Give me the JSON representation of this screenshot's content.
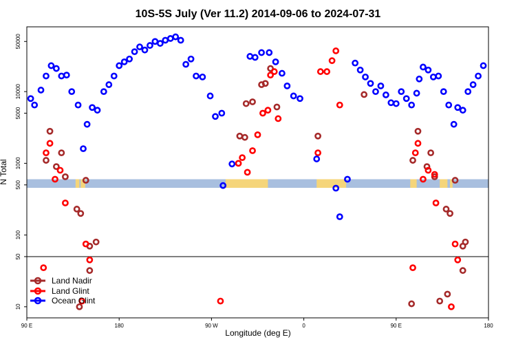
{
  "chart_data": {
    "type": "scatter",
    "title": "10S-5S July (Ver 11.2)   2014-09-06 to 2024-07-31",
    "xlabel": "Longitude (deg E)",
    "ylabel": "N Total",
    "y_scale": "log",
    "ylim": [
      7,
      80000
    ],
    "xlim": [
      0,
      360
    ],
    "x_ticks": [
      {
        "value": 0,
        "label": "90 E"
      },
      {
        "value": 72,
        "label": "180"
      },
      {
        "value": 144,
        "label": "90 W"
      },
      {
        "value": 216,
        "label": "0"
      },
      {
        "value": 288,
        "label": "90 E"
      },
      {
        "value": 360,
        "label": "180"
      }
    ],
    "y_ticks": [
      {
        "value": 10,
        "label": "10"
      },
      {
        "value": 50,
        "label": "50"
      },
      {
        "value": 100,
        "label": "100"
      },
      {
        "value": 500,
        "label": "500"
      },
      {
        "value": 1000,
        "label": "1000"
      },
      {
        "value": 5000,
        "label": "5000"
      },
      {
        "value": 10000,
        "label": "10000"
      },
      {
        "value": 50000,
        "label": "50000"
      }
    ],
    "reference_line": 50,
    "legend_position": "bottom-left",
    "colors": {
      "land_nadir": "#a52a2a",
      "land_glint": "#ff0000",
      "ocean_glint": "#0000ff",
      "map_ocean": "#a8bfdf",
      "map_land": "#f5d57a"
    },
    "map_band": {
      "y_low": 455,
      "y_high": 600,
      "land_segments": [
        [
          38,
          41
        ],
        [
          42,
          45.5
        ],
        [
          155,
          158
        ],
        [
          157,
          188
        ],
        [
          226,
          249
        ],
        [
          299,
          304
        ],
        [
          322,
          328
        ],
        [
          330,
          332
        ]
      ]
    },
    "series": [
      {
        "key": "land_nadir",
        "name": "Land Nadir",
        "points": [
          [
            15,
            1100
          ],
          [
            18,
            2800
          ],
          [
            23,
            900
          ],
          [
            27,
            1400
          ],
          [
            30,
            650
          ],
          [
            39,
            230
          ],
          [
            42,
            200
          ],
          [
            46,
            580
          ],
          [
            49,
            70
          ],
          [
            49,
            32
          ],
          [
            54,
            80
          ],
          [
            41,
            10
          ],
          [
            166,
            2400
          ],
          [
            170,
            2300
          ],
          [
            171,
            6800
          ],
          [
            176,
            7200
          ],
          [
            183,
            12500
          ],
          [
            186,
            13000
          ],
          [
            190,
            21000
          ],
          [
            195,
            6100
          ],
          [
            227,
            2400
          ],
          [
            263,
            9100
          ],
          [
            300,
            11
          ],
          [
            305,
            2800
          ],
          [
            301,
            1100
          ],
          [
            312,
            900
          ],
          [
            315,
            1400
          ],
          [
            318,
            650
          ],
          [
            327,
            230
          ],
          [
            330,
            200
          ],
          [
            334,
            580
          ],
          [
            340,
            70
          ],
          [
            340,
            32
          ],
          [
            342,
            80
          ],
          [
            322,
            12
          ],
          [
            328,
            15
          ]
        ]
      },
      {
        "key": "land_glint",
        "name": "Land Glint",
        "points": [
          [
            13,
            35
          ],
          [
            15,
            1400
          ],
          [
            18,
            1900
          ],
          [
            22,
            600
          ],
          [
            26,
            800
          ],
          [
            30,
            280
          ],
          [
            43,
            12
          ],
          [
            46,
            75
          ],
          [
            49,
            45
          ],
          [
            151,
            12
          ],
          [
            165,
            1000
          ],
          [
            168,
            1200
          ],
          [
            172,
            750
          ],
          [
            176,
            1500
          ],
          [
            180,
            2500
          ],
          [
            184,
            5000
          ],
          [
            188,
            5500
          ],
          [
            190,
            17000
          ],
          [
            193,
            19000
          ],
          [
            196,
            4200
          ],
          [
            227,
            1400
          ],
          [
            229,
            19000
          ],
          [
            234,
            19000
          ],
          [
            238,
            27000
          ],
          [
            241,
            37000
          ],
          [
            244,
            6500
          ],
          [
            301,
            35
          ],
          [
            303,
            1400
          ],
          [
            305,
            1900
          ],
          [
            309,
            600
          ],
          [
            313,
            800
          ],
          [
            319,
            280
          ],
          [
            331,
            10
          ],
          [
            334,
            75
          ],
          [
            336,
            45
          ],
          [
            318,
            700
          ]
        ]
      },
      {
        "key": "ocean_glint",
        "name": "Ocean Glint",
        "points": [
          [
            3,
            8000
          ],
          [
            6,
            6500
          ],
          [
            11,
            10500
          ],
          [
            15,
            16500
          ],
          [
            19,
            23000
          ],
          [
            23,
            21000
          ],
          [
            27,
            16500
          ],
          [
            31,
            17000
          ],
          [
            35,
            10000
          ],
          [
            40,
            6500
          ],
          [
            44,
            1600
          ],
          [
            47,
            3500
          ],
          [
            51,
            6000
          ],
          [
            55,
            5500
          ],
          [
            60,
            10000
          ],
          [
            64,
            12500
          ],
          [
            68,
            16500
          ],
          [
            72,
            23000
          ],
          [
            76,
            26000
          ],
          [
            80,
            28500
          ],
          [
            84,
            36000
          ],
          [
            88,
            42000
          ],
          [
            92,
            38000
          ],
          [
            96,
            44000
          ],
          [
            100,
            50000
          ],
          [
            104,
            47000
          ],
          [
            108,
            52000
          ],
          [
            112,
            55000
          ],
          [
            116,
            58000
          ],
          [
            120,
            52000
          ],
          [
            124,
            24000
          ],
          [
            128,
            28500
          ],
          [
            132,
            16500
          ],
          [
            137,
            16000
          ],
          [
            143,
            8700
          ],
          [
            147,
            4500
          ],
          [
            152,
            5000
          ],
          [
            153,
            490
          ],
          [
            160,
            980
          ],
          [
            174,
            31000
          ],
          [
            178,
            30000
          ],
          [
            183,
            35000
          ],
          [
            189,
            35000
          ],
          [
            194,
            26000
          ],
          [
            199,
            18000
          ],
          [
            203,
            12000
          ],
          [
            208,
            8700
          ],
          [
            213,
            8000
          ],
          [
            226,
            1150
          ],
          [
            241,
            450
          ],
          [
            244,
            180
          ],
          [
            250,
            600
          ],
          [
            256,
            25000
          ],
          [
            260,
            20000
          ],
          [
            264,
            16000
          ],
          [
            268,
            13000
          ],
          [
            272,
            10000
          ],
          [
            276,
            12000
          ],
          [
            280,
            9000
          ],
          [
            284,
            7000
          ],
          [
            288,
            6800
          ],
          [
            292,
            10000
          ],
          [
            296,
            8000
          ],
          [
            300,
            6500
          ],
          [
            304,
            9500
          ],
          [
            306,
            15000
          ],
          [
            309,
            22000
          ],
          [
            313,
            20000
          ],
          [
            317,
            16000
          ],
          [
            321,
            16500
          ],
          [
            325,
            10000
          ],
          [
            329,
            6500
          ],
          [
            333,
            3500
          ],
          [
            336,
            6000
          ],
          [
            340,
            5500
          ],
          [
            344,
            10000
          ],
          [
            348,
            12500
          ],
          [
            352,
            16500
          ],
          [
            356,
            23000
          ]
        ]
      }
    ]
  }
}
